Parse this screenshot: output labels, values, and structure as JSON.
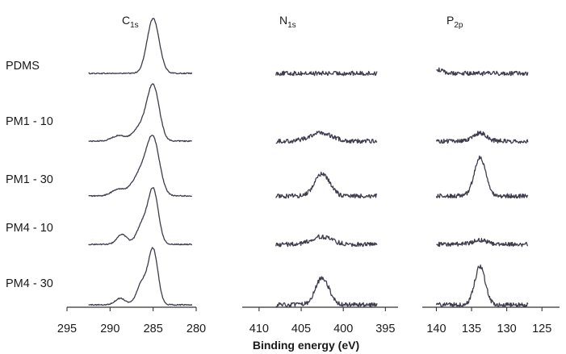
{
  "chart_data": {
    "type": "line",
    "xlabel": "Binding energy (eV)",
    "samples": [
      "PDMS",
      "PM1 - 10",
      "PM1 - 30",
      "PM4 - 10",
      "PM4 - 30"
    ],
    "panels": [
      {
        "title_main": "C",
        "title_sub": "1s",
        "xlim": [
          295,
          280
        ],
        "ticks": [
          295,
          290,
          285,
          280
        ],
        "tick_labels": [
          "295",
          "290",
          "285",
          "280"
        ],
        "x_range": [
          292.5,
          280.5
        ],
        "noise": 0.01,
        "series": [
          {
            "name": "PDMS",
            "baseline": 0.0,
            "peaks": [
              [
                285.0,
                1.0,
                0.7
              ]
            ]
          },
          {
            "name": "PM1 - 10",
            "baseline": 0.0,
            "peaks": [
              [
                285.0,
                1.0,
                0.7
              ],
              [
                286.5,
                0.25,
                0.8
              ],
              [
                289.0,
                0.1,
                0.8
              ]
            ]
          },
          {
            "name": "PM1 - 30",
            "baseline": 0.0,
            "peaks": [
              [
                285.0,
                1.0,
                0.75
              ],
              [
                286.5,
                0.4,
                0.9
              ],
              [
                289.0,
                0.12,
                0.8
              ]
            ]
          },
          {
            "name": "PM4 - 10",
            "baseline": 0.0,
            "peaks": [
              [
                285.0,
                1.0,
                0.6
              ],
              [
                286.3,
                0.35,
                0.6
              ],
              [
                288.6,
                0.18,
                0.6
              ]
            ]
          },
          {
            "name": "PM4 - 30",
            "baseline": 0.0,
            "peaks": [
              [
                285.0,
                1.0,
                0.55
              ],
              [
                286.3,
                0.4,
                0.6
              ],
              [
                288.8,
                0.12,
                0.6
              ]
            ]
          }
        ]
      },
      {
        "title_main": "N",
        "title_sub": "1s",
        "xlim": [
          412,
          393.5
        ],
        "ticks": [
          410,
          405,
          400,
          395
        ],
        "tick_labels": [
          "410",
          "405",
          "400",
          "395"
        ],
        "x_range": [
          408,
          396
        ],
        "noise": 0.04,
        "series": [
          {
            "name": "PDMS",
            "baseline": 0.0,
            "peaks": []
          },
          {
            "name": "PM1 - 10",
            "baseline": 0.0,
            "peaks": [
              [
                402.7,
                0.15,
                1.3
              ]
            ]
          },
          {
            "name": "PM1 - 30",
            "baseline": 0.0,
            "peaks": [
              [
                402.5,
                0.4,
                0.9
              ]
            ]
          },
          {
            "name": "PM4 - 10",
            "baseline": 0.0,
            "peaks": [
              [
                402.6,
                0.14,
                1.2
              ]
            ]
          },
          {
            "name": "PM4 - 30",
            "baseline": 0.0,
            "peaks": [
              [
                402.5,
                0.5,
                0.8
              ]
            ]
          }
        ]
      },
      {
        "title_main": "P",
        "title_sub": "2p",
        "xlim": [
          142,
          122.5
        ],
        "ticks": [
          140,
          135,
          130,
          125
        ],
        "tick_labels": [
          "140",
          "135",
          "130",
          "125"
        ],
        "x_range": [
          140,
          127
        ],
        "noise": 0.04,
        "series": [
          {
            "name": "PDMS",
            "baseline": 0.0,
            "peaks": [
              [
                140.0,
                0.07,
                0.8
              ]
            ]
          },
          {
            "name": "PM1 - 10",
            "baseline": 0.0,
            "peaks": [
              [
                133.8,
                0.15,
                0.9
              ]
            ]
          },
          {
            "name": "PM1 - 30",
            "baseline": 0.0,
            "peaks": [
              [
                133.8,
                0.7,
                0.8
              ]
            ]
          },
          {
            "name": "PM4 - 10",
            "baseline": 0.0,
            "peaks": [
              [
                133.8,
                0.08,
                1.0
              ]
            ]
          },
          {
            "name": "PM4 - 30",
            "baseline": 0.0,
            "peaks": [
              [
                133.8,
                0.7,
                0.75
              ]
            ]
          }
        ]
      }
    ],
    "grid": false,
    "legend": "none"
  }
}
